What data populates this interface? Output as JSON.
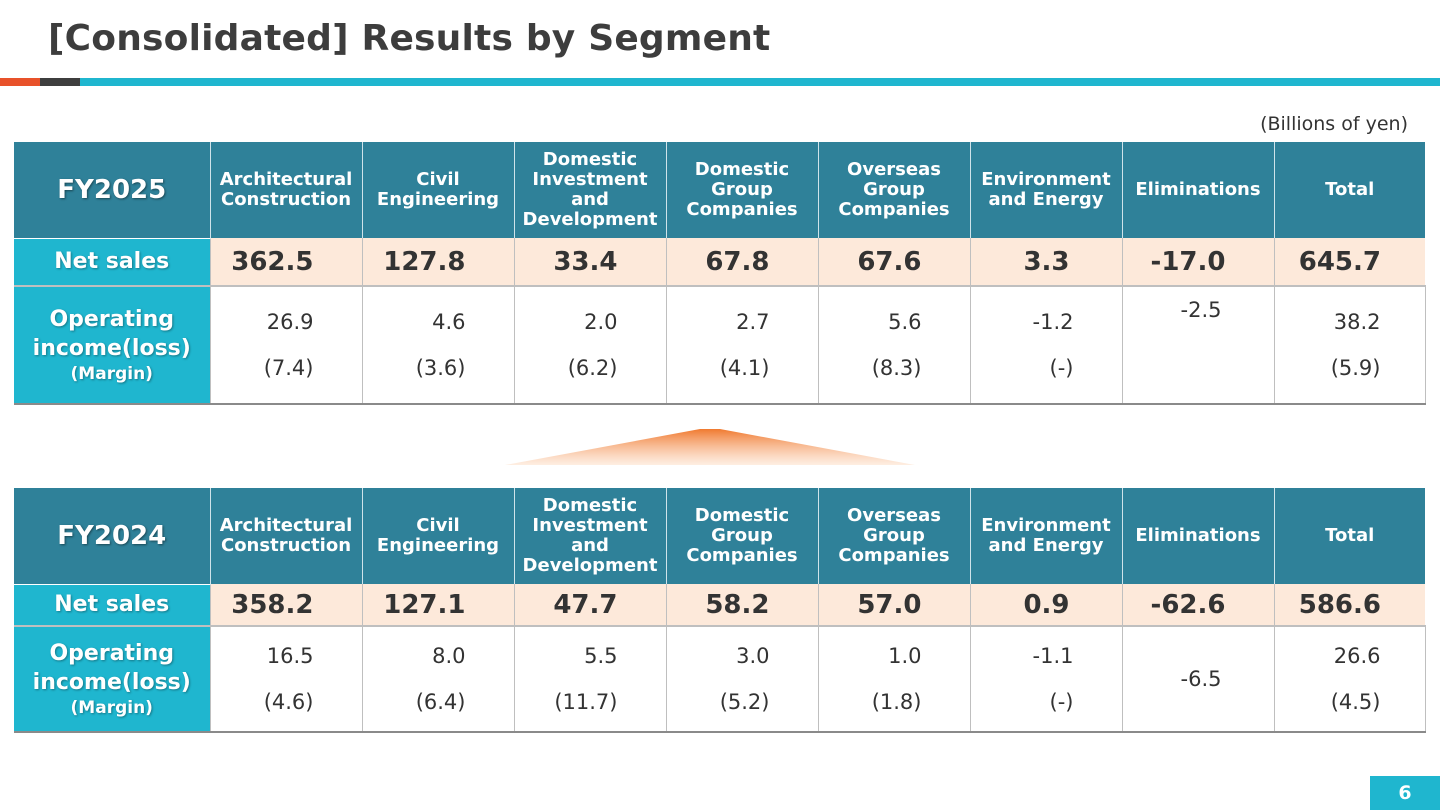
{
  "title": "[Consolidated] Results by Segment",
  "unit": "(Billions of yen)",
  "page_number": "6",
  "colors": {
    "header_bg": "#2f8199",
    "label_bg": "#1fb6cf",
    "net_sales_bg": "#fde9da",
    "accent_orange": "#e8522a"
  },
  "row_labels": {
    "net_sales": "Net sales",
    "operating_income": "Operating income(loss)",
    "margin": "(Margin)"
  },
  "columns": [
    "Architectural Construction",
    "Civil Engineering",
    "Domestic Investment and Development",
    "Domestic Group Companies",
    "Overseas Group Companies",
    "Environment and Energy",
    "Eliminations",
    "Total"
  ],
  "fy2025": {
    "label": "FY2025",
    "net_sales": [
      "362.5",
      "127.8",
      "33.4",
      "67.8",
      "67.6",
      "3.3",
      "-17.0",
      "645.7"
    ],
    "operating_income": [
      "26.9",
      "4.6",
      "2.0",
      "2.7",
      "5.6",
      "-1.2",
      "-2.5",
      "38.2"
    ],
    "margin": [
      "(7.4)",
      "(3.6)",
      "(6.2)",
      "(4.1)",
      "(8.3)",
      "(-)",
      "",
      "(5.9)"
    ]
  },
  "fy2024": {
    "label": "FY2024",
    "net_sales": [
      "358.2",
      "127.1",
      "47.7",
      "58.2",
      "57.0",
      "0.9",
      "-62.6",
      "586.6"
    ],
    "operating_income": [
      "16.5",
      "8.0",
      "5.5",
      "3.0",
      "1.0",
      "-1.1",
      "-6.5",
      "26.6"
    ],
    "margin": [
      "(4.6)",
      "(6.4)",
      "(11.7)",
      "(5.2)",
      "(1.8)",
      "(-)",
      "",
      "(4.5)"
    ]
  }
}
